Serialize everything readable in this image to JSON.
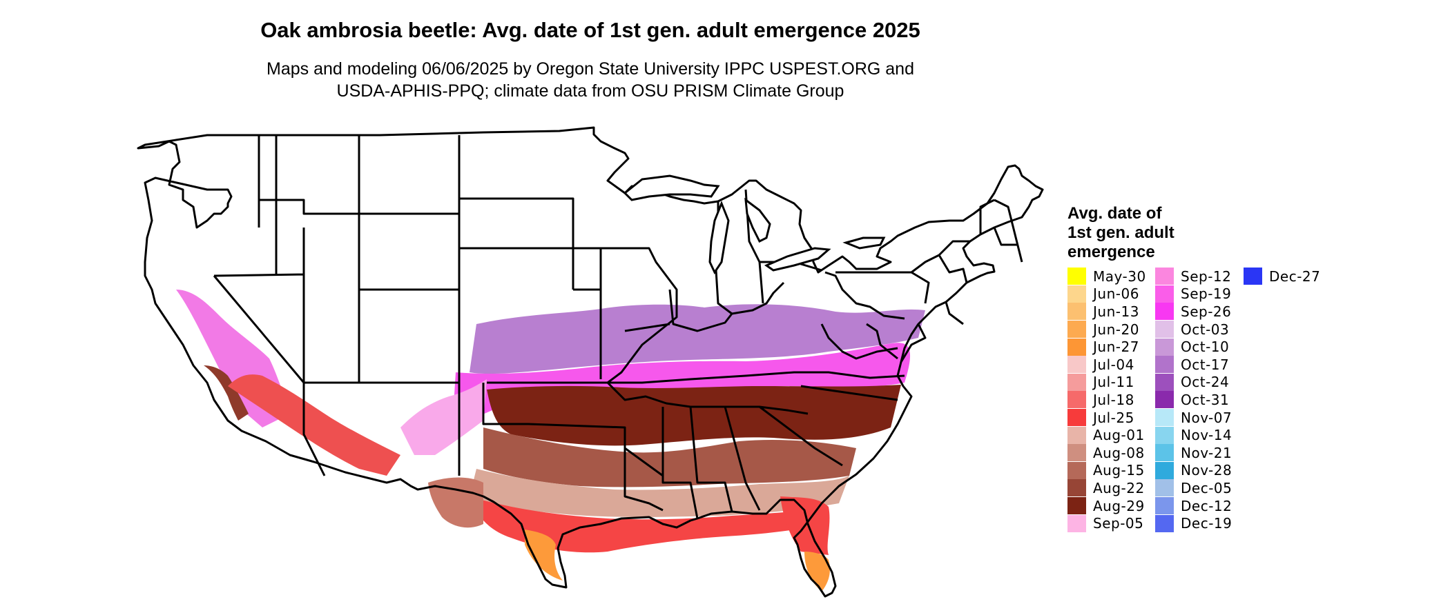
{
  "title": "Oak ambrosia beetle: Avg. date of 1st gen. adult emergence 2025",
  "subtitle_lines": [
    "Maps and modeling 06/06/2025 by Oregon State University IPPC USPEST.ORG and",
    "USDA-APHIS-PPQ; climate data from OSU PRISM Climate Group"
  ],
  "legend": {
    "title_lines": [
      "Avg. date of",
      "1st gen. adult",
      "emergence"
    ],
    "columns": [
      [
        {
          "label": "May-30",
          "color": "#ffff00"
        },
        {
          "label": "Jun-06",
          "color": "#fdd68c"
        },
        {
          "label": "Jun-13",
          "color": "#fcc070"
        },
        {
          "label": "Jun-20",
          "color": "#fdaa50"
        },
        {
          "label": "Jun-27",
          "color": "#fd9635"
        },
        {
          "label": "Jul-04",
          "color": "#f8c8c8"
        },
        {
          "label": "Jul-11",
          "color": "#f59c9c"
        },
        {
          "label": "Jul-18",
          "color": "#f66a6a"
        },
        {
          "label": "Jul-25",
          "color": "#f73b3b"
        },
        {
          "label": "Aug-01",
          "color": "#e8b4a8"
        },
        {
          "label": "Aug-08",
          "color": "#cf8f80"
        },
        {
          "label": "Aug-15",
          "color": "#b56959"
        },
        {
          "label": "Aug-22",
          "color": "#974536"
        },
        {
          "label": "Aug-29",
          "color": "#7c2314"
        },
        {
          "label": "Sep-05",
          "color": "#fdb4e4"
        }
      ],
      [
        {
          "label": "Sep-12",
          "color": "#fb86df"
        },
        {
          "label": "Sep-19",
          "color": "#fa5de9"
        },
        {
          "label": "Sep-26",
          "color": "#f838f2"
        },
        {
          "label": "Oct-03",
          "color": "#e1c0e8"
        },
        {
          "label": "Oct-10",
          "color": "#c998d8"
        },
        {
          "label": "Oct-17",
          "color": "#b173cb"
        },
        {
          "label": "Oct-24",
          "color": "#9d50bd"
        },
        {
          "label": "Oct-31",
          "color": "#8a2aac"
        },
        {
          "label": "Nov-07",
          "color": "#b7e8f8"
        },
        {
          "label": "Nov-14",
          "color": "#88d5ef"
        },
        {
          "label": "Nov-21",
          "color": "#5cc3e8"
        },
        {
          "label": "Nov-28",
          "color": "#2faadd"
        },
        {
          "label": "Dec-05",
          "color": "#a1c0e8"
        },
        {
          "label": "Dec-12",
          "color": "#7b96ec"
        },
        {
          "label": "Dec-19",
          "color": "#5468f1"
        }
      ],
      [
        {
          "label": "Dec-27",
          "color": "#2a36f5"
        }
      ]
    ]
  }
}
